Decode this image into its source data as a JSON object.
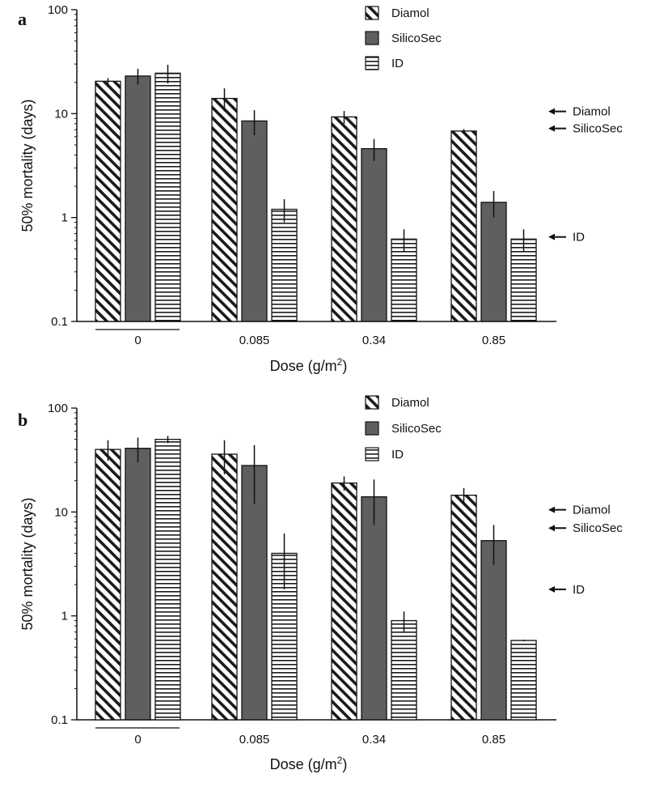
{
  "chart_data": [
    {
      "panel": "a",
      "type": "bar",
      "yscale": "log",
      "ylim": [
        0.1,
        100
      ],
      "yticks": [
        "0.1",
        "1",
        "10",
        "100"
      ],
      "ylabel": "50% mortality (days)",
      "xlabel": "Dose (g/m",
      "xlabel_sup": "2",
      "xlabel_end": ")",
      "categories": [
        "0",
        "0.085",
        "0.34",
        "0.85"
      ],
      "series": [
        {
          "name": "Diamol",
          "values": [
            20.5,
            14,
            9.3,
            6.8
          ],
          "err": [
            1.5,
            3.5,
            1.3,
            0.3
          ]
        },
        {
          "name": "SilicoSec",
          "values": [
            23,
            8.5,
            4.6,
            1.4
          ],
          "err": [
            4,
            2.3,
            1.1,
            0.4
          ]
        },
        {
          "name": "ID",
          "values": [
            24.5,
            1.2,
            0.62,
            0.62
          ],
          "err": [
            5,
            0.3,
            0.15,
            0.15
          ]
        }
      ],
      "arrows": [
        {
          "label": "Diamol",
          "value": 10.5
        },
        {
          "label": "SilicoSec",
          "value": 7.2
        },
        {
          "label": "ID",
          "value": 0.65
        }
      ]
    },
    {
      "panel": "b",
      "type": "bar",
      "yscale": "log",
      "ylim": [
        0.1,
        100
      ],
      "yticks": [
        "0.1",
        "1",
        "10",
        "100"
      ],
      "ylabel": "50% mortality (days)",
      "xlabel": "Dose (g/m",
      "xlabel_sup": "2",
      "xlabel_end": ")",
      "categories": [
        "0",
        "0.085",
        "0.34",
        "0.85"
      ],
      "series": [
        {
          "name": "Diamol",
          "values": [
            40,
            36,
            19,
            14.5
          ],
          "err": [
            9,
            13,
            3,
            2.5
          ]
        },
        {
          "name": "SilicoSec",
          "values": [
            41,
            28,
            14,
            5.3
          ],
          "err": [
            11,
            16,
            6.5,
            2.2
          ]
        },
        {
          "name": "ID",
          "values": [
            50,
            4,
            0.9,
            0.58
          ],
          "err": [
            4,
            2.2,
            0.2,
            0.01
          ]
        }
      ],
      "arrows": [
        {
          "label": "Diamol",
          "value": 10.5
        },
        {
          "label": "SilicoSec",
          "value": 7
        },
        {
          "label": "ID",
          "value": 1.8
        }
      ]
    }
  ]
}
